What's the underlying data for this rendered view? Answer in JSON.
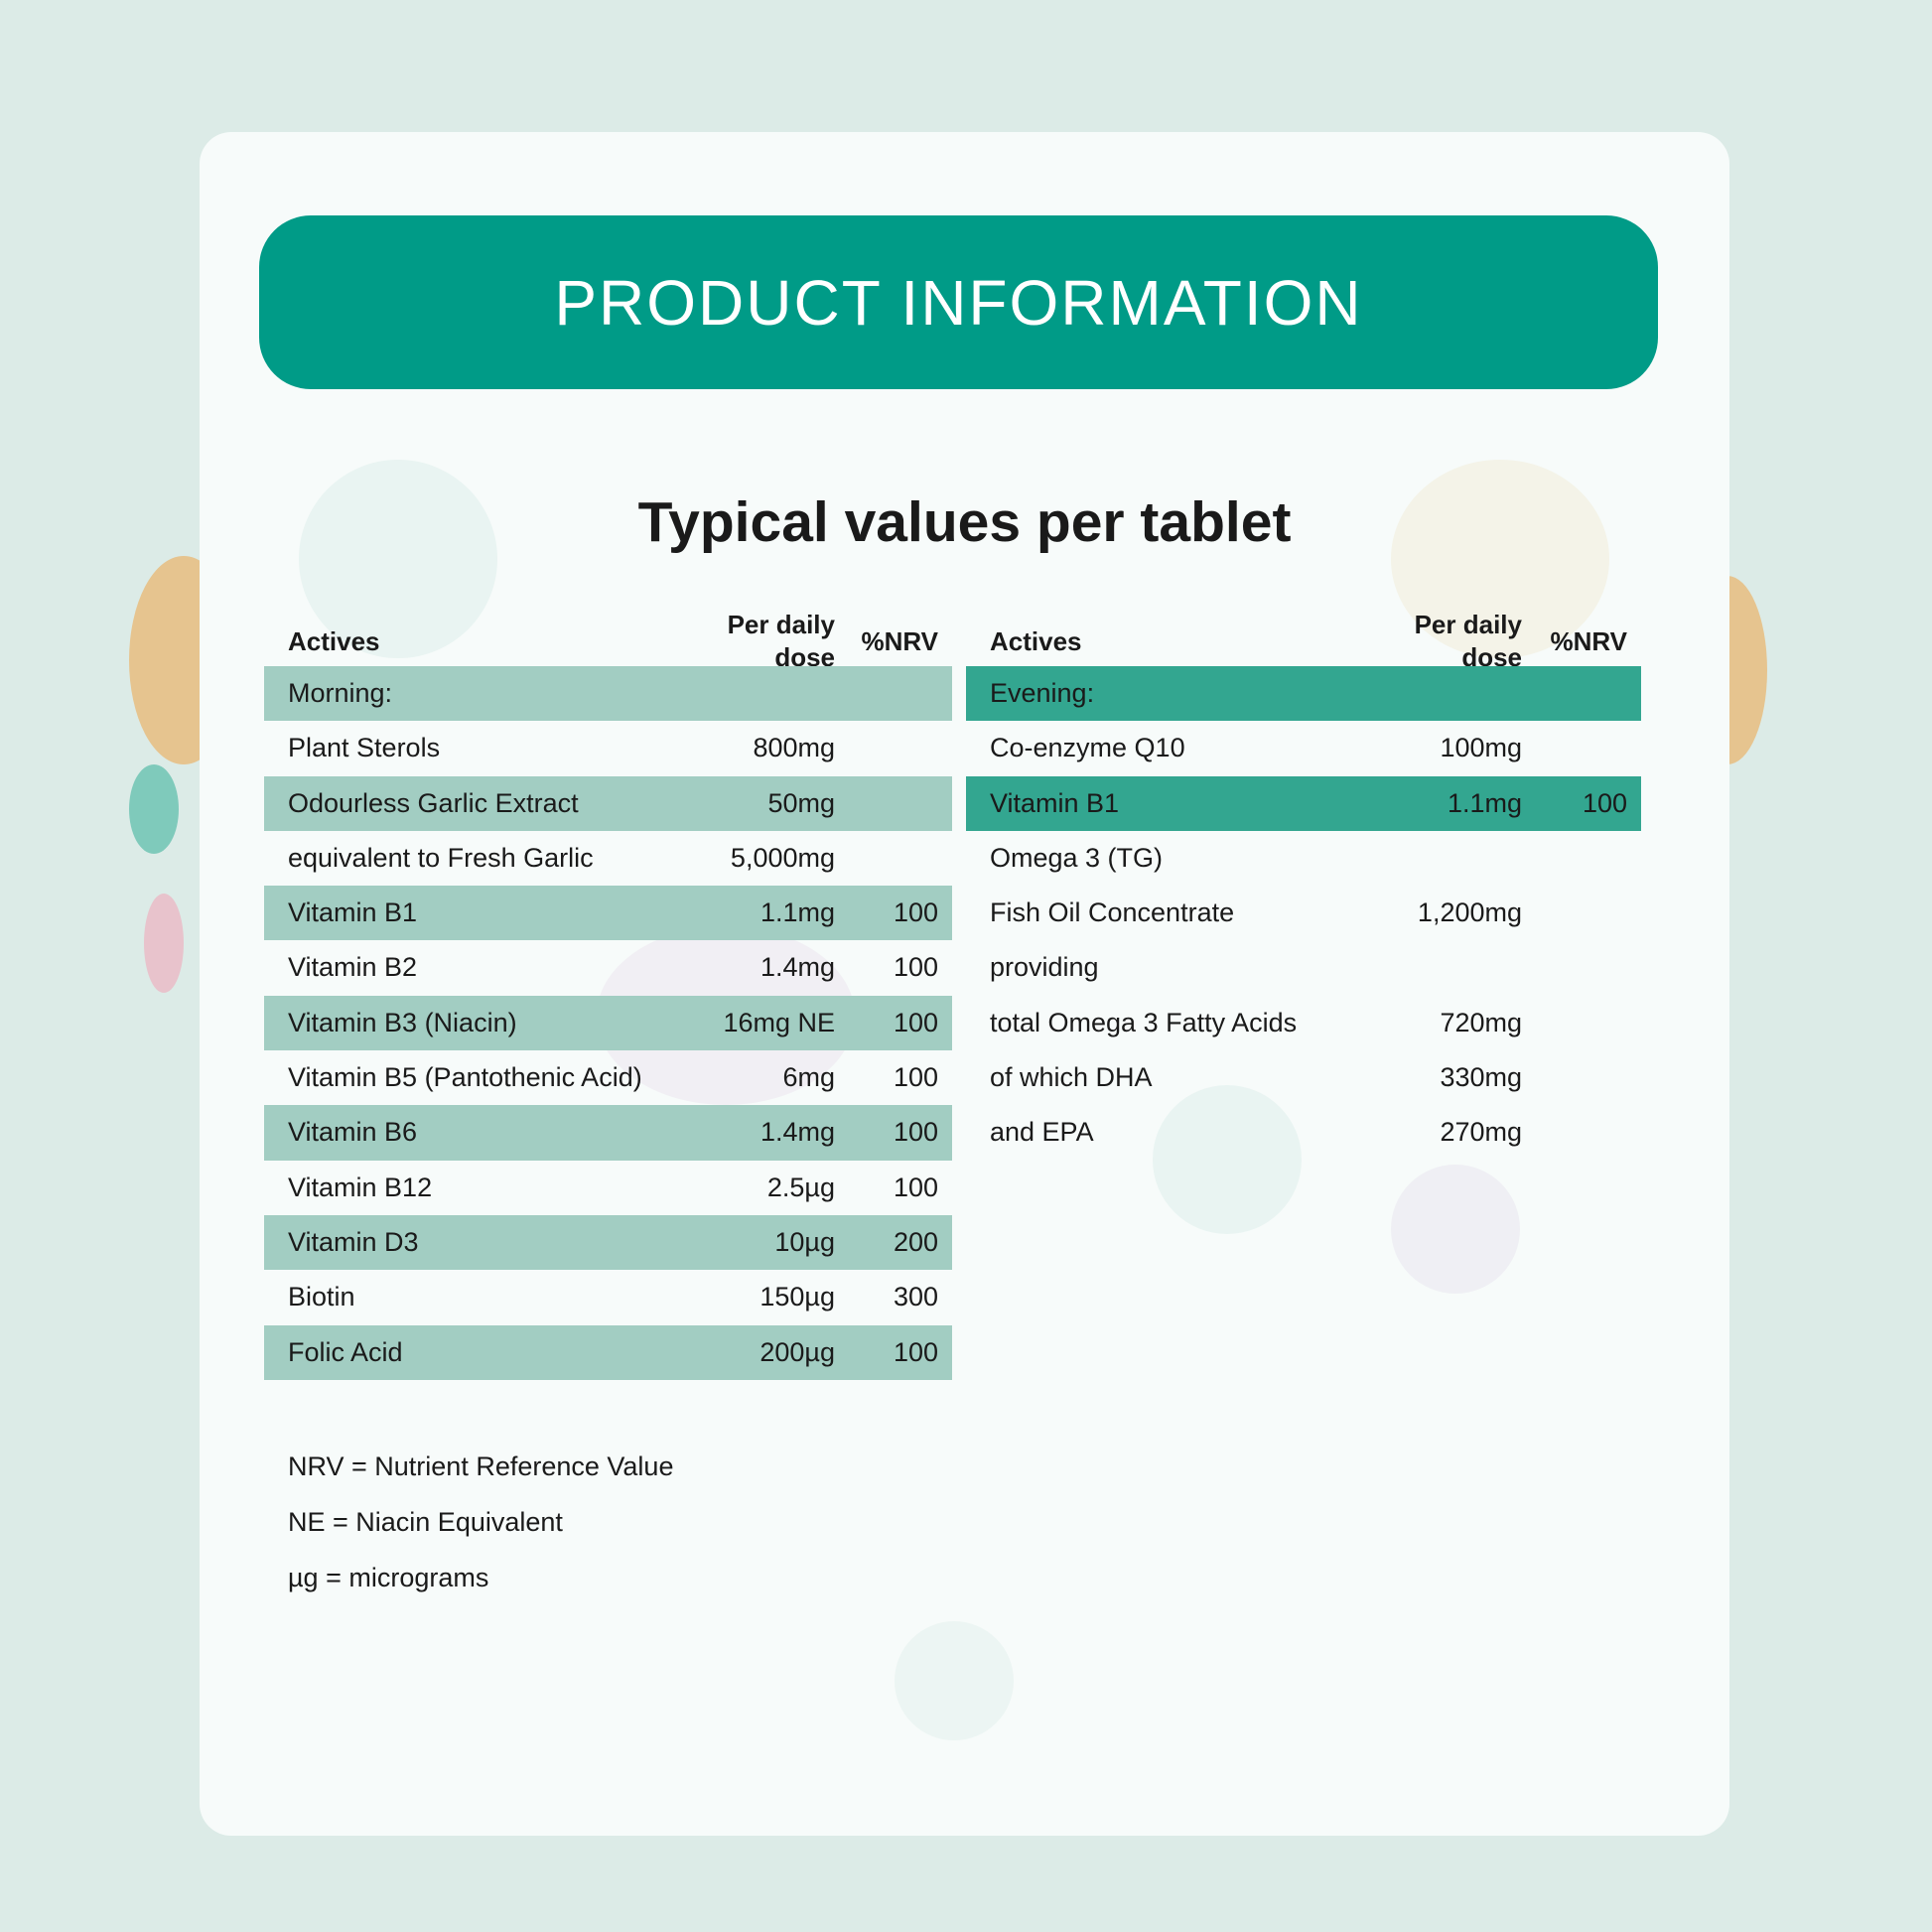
{
  "header": {
    "title": "PRODUCT INFORMATION"
  },
  "subtitle": "Typical values per tablet",
  "columns": {
    "actives": "Actives",
    "dose": "Per daily dose",
    "dose_line1": "Per daily",
    "dose_line2": "dose",
    "nrv": "%NRV"
  },
  "colors": {
    "header": "#009b87",
    "row_light": "#a2cdc2",
    "row_dark": "#33a690",
    "background": "#dcebe7"
  },
  "morning": [
    {
      "name": "Morning:",
      "dose": "",
      "nrv": ""
    },
    {
      "name": "Plant Sterols",
      "dose": "800mg",
      "nrv": ""
    },
    {
      "name": "Odourless Garlic Extract",
      "dose": "50mg",
      "nrv": ""
    },
    {
      "name": "equivalent to Fresh Garlic",
      "dose": "5,000mg",
      "nrv": ""
    },
    {
      "name": "Vitamin B1",
      "dose": "1.1mg",
      "nrv": "100"
    },
    {
      "name": "Vitamin B2",
      "dose": "1.4mg",
      "nrv": "100"
    },
    {
      "name": "Vitamin B3 (Niacin)",
      "dose": "16mg NE",
      "nrv": "100"
    },
    {
      "name": "Vitamin B5 (Pantothenic Acid)",
      "dose": "6mg",
      "nrv": "100"
    },
    {
      "name": "Vitamin B6",
      "dose": "1.4mg",
      "nrv": "100"
    },
    {
      "name": "Vitamin B12",
      "dose": "2.5µg",
      "nrv": "100"
    },
    {
      "name": "Vitamin D3",
      "dose": "10µg",
      "nrv": "200"
    },
    {
      "name": "Biotin",
      "dose": "150µg",
      "nrv": "300"
    },
    {
      "name": "Folic Acid",
      "dose": "200µg",
      "nrv": "100"
    }
  ],
  "evening": [
    {
      "name": "Evening:",
      "dose": "",
      "nrv": ""
    },
    {
      "name": "Co-enzyme Q10",
      "dose": "100mg",
      "nrv": ""
    },
    {
      "name": "Vitamin B1",
      "dose": "1.1mg",
      "nrv": "100"
    },
    {
      "name": "Omega 3 (TG)",
      "dose": "",
      "nrv": ""
    },
    {
      "name": "Fish Oil Concentrate",
      "dose": "1,200mg",
      "nrv": ""
    },
    {
      "name": "providing",
      "dose": "",
      "nrv": ""
    },
    {
      "name": "total Omega 3 Fatty Acids",
      "dose": "720mg",
      "nrv": ""
    },
    {
      "name": "of which DHA",
      "dose": "330mg",
      "nrv": ""
    },
    {
      "name": "and EPA",
      "dose": "270mg",
      "nrv": ""
    }
  ],
  "notes": [
    "NRV = Nutrient Reference Value",
    "NE = Niacin Equivalent",
    "µg = micrograms"
  ]
}
